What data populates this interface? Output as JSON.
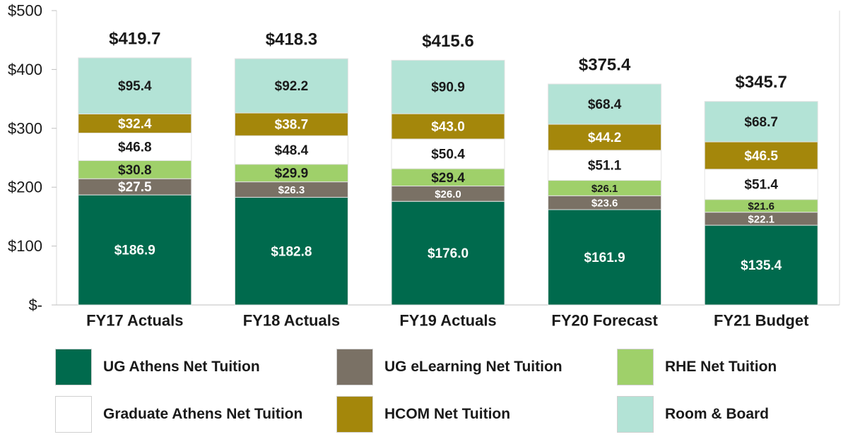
{
  "chart_data": {
    "type": "bar",
    "stacked": true,
    "categories": [
      "FY17 Actuals",
      "FY18 Actuals",
      "FY19 Actuals",
      "FY20 Forecast",
      "FY21 Budget"
    ],
    "series": [
      {
        "name": "UG Athens Net Tuition",
        "color": "#006a4d",
        "label_color": "#ffffff",
        "values": [
          186.9,
          182.8,
          176.0,
          161.9,
          135.4
        ],
        "labels": [
          "$186.9",
          "$182.8",
          "$176.0",
          "$161.9",
          "$135.4"
        ]
      },
      {
        "name": "UG eLearning Net Tuition",
        "color": "#7a7165",
        "label_color": "#ffffff",
        "values": [
          27.5,
          26.3,
          26.0,
          23.6,
          22.1
        ],
        "labels": [
          "$27.5",
          "$26.3",
          "$26.0",
          "$23.6",
          "$22.1"
        ]
      },
      {
        "name": "RHE Net Tuition",
        "color": "#9fd06a",
        "label_color": "#1a1a1a",
        "values": [
          30.8,
          29.9,
          29.4,
          26.1,
          21.6
        ],
        "labels": [
          "$30.8",
          "$29.9",
          "$29.4",
          "$26.1",
          "$21.6"
        ]
      },
      {
        "name": "Graduate Athens Net Tuition",
        "color": "#ffffff",
        "label_color": "#1a1a1a",
        "values": [
          46.8,
          48.4,
          50.4,
          51.1,
          51.4
        ],
        "labels": [
          "$46.8",
          "$48.4",
          "$50.4",
          "$51.1",
          "$51.4"
        ]
      },
      {
        "name": "HCOM Net Tuition",
        "color": "#a4870b",
        "label_color": "#ffffff",
        "values": [
          32.4,
          38.7,
          43.0,
          44.2,
          46.5
        ],
        "labels": [
          "$32.4",
          "$38.7",
          "$43.0",
          "$44.2",
          "$46.5"
        ]
      },
      {
        "name": "Room & Board",
        "color": "#b3e3d6",
        "label_color": "#1a1a1a",
        "values": [
          95.4,
          92.2,
          90.9,
          68.4,
          68.7
        ],
        "labels": [
          "$95.4",
          "$92.2",
          "$90.9",
          "$68.4",
          "$68.7"
        ]
      }
    ],
    "totals": [
      419.7,
      418.3,
      415.6,
      375.4,
      345.7
    ],
    "total_labels": [
      "$419.7",
      "$418.3",
      "$415.6",
      "$375.4",
      "$345.7"
    ],
    "ylim": [
      0,
      500
    ],
    "y_ticks": [
      0,
      100,
      200,
      300,
      400,
      500
    ],
    "y_tick_labels": [
      "$-",
      "$100",
      "$200",
      "$300",
      "$400",
      "$500"
    ],
    "legend_position": "bottom",
    "grid": false
  },
  "legend_order": [
    0,
    1,
    2,
    3,
    4,
    5
  ]
}
